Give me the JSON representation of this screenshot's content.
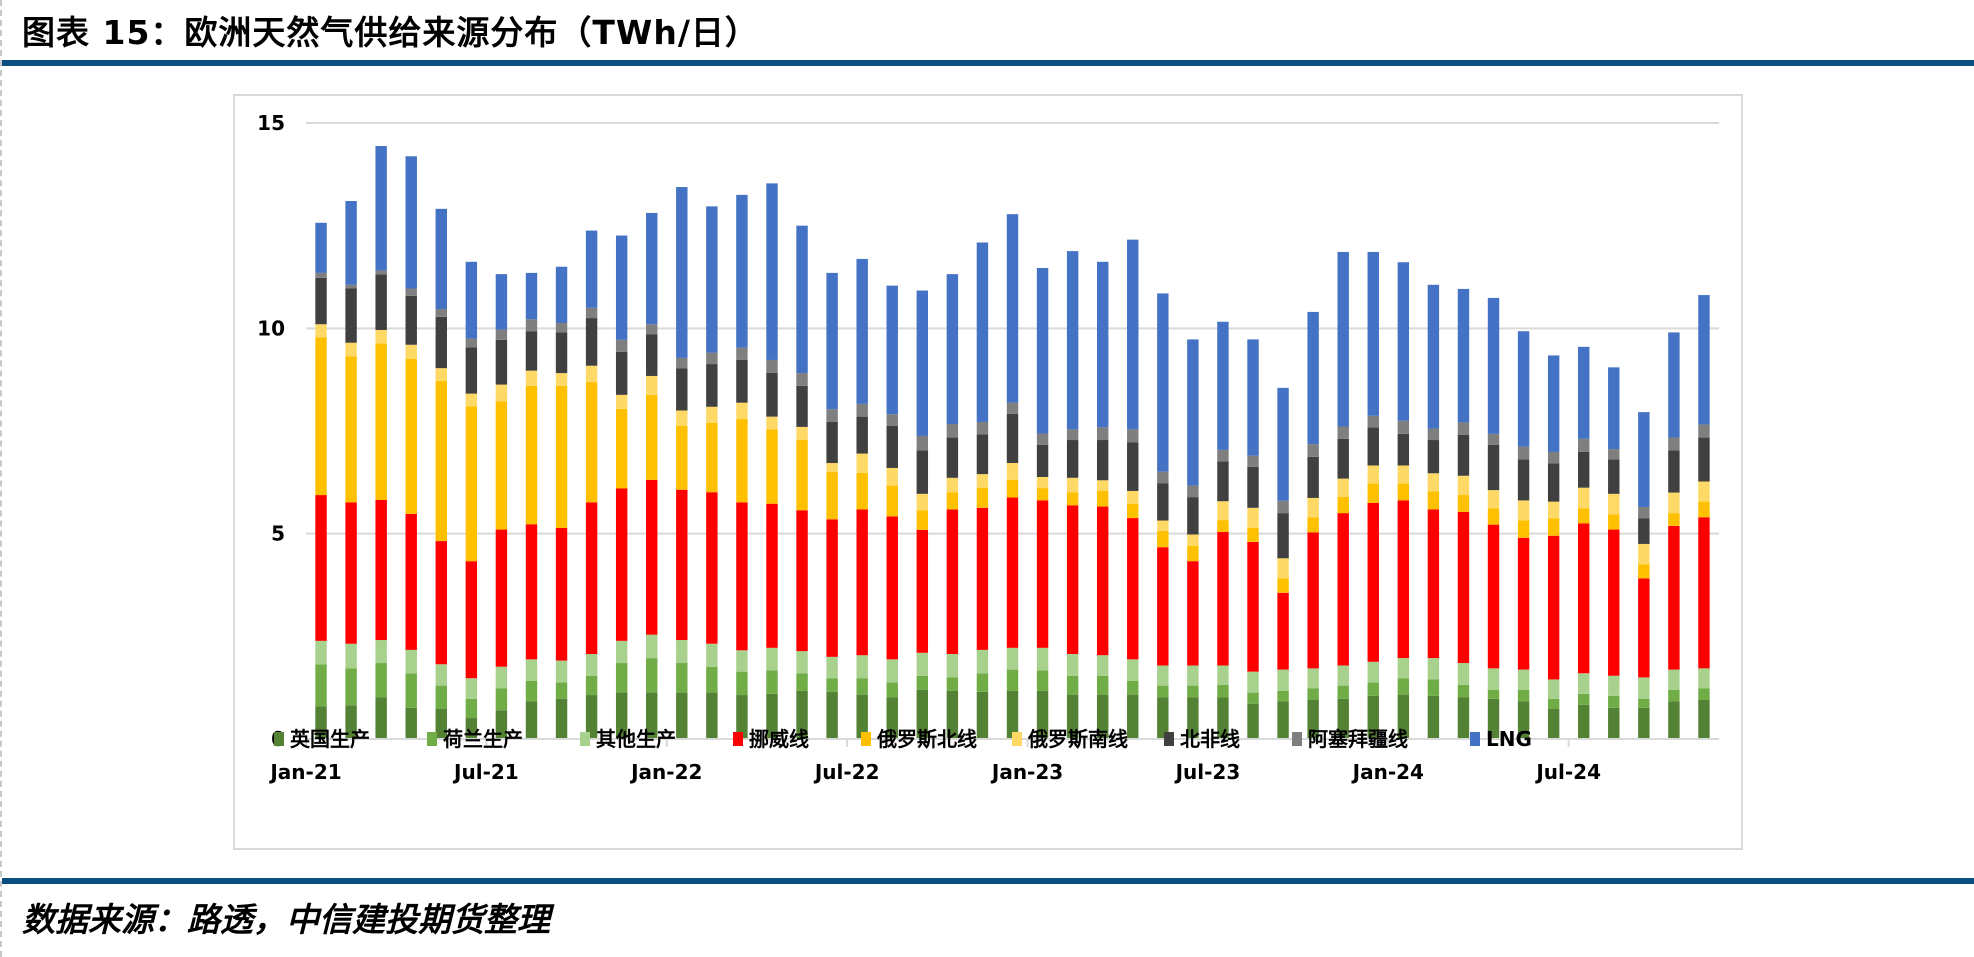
{
  "header": {
    "title": "图表 15：欧洲天然气供给来源分布（TWh/日）"
  },
  "footer": {
    "source": "数据来源：路透，中信建投期货整理"
  },
  "colors": {
    "rule": "#0b4f80",
    "grid": "#d9d9d9"
  },
  "chart_data": {
    "type": "bar",
    "stacked": true,
    "title": "欧洲天然气供给来源分布（TWh/日）",
    "xlabel": "",
    "ylabel": "",
    "ylim": [
      0,
      15
    ],
    "yticks": [
      0,
      5,
      10,
      15
    ],
    "grid": true,
    "legend_position": "bottom",
    "x_tick_labels": [
      "Jan-21",
      "Jul-21",
      "Jan-22",
      "Jul-22",
      "Jan-23",
      "Jul-23",
      "Jan-24",
      "Jul-24"
    ],
    "categories": [
      "Jan-21",
      "Feb-21",
      "Mar-21",
      "Apr-21",
      "May-21",
      "Jun-21",
      "Jul-21",
      "Aug-21",
      "Sep-21",
      "Oct-21",
      "Nov-21",
      "Dec-21",
      "Jan-22",
      "Feb-22",
      "Mar-22",
      "Apr-22",
      "May-22",
      "Jun-22",
      "Jul-22",
      "Aug-22",
      "Sep-22",
      "Oct-22",
      "Nov-22",
      "Dec-22",
      "Jan-23",
      "Feb-23",
      "Mar-23",
      "Apr-23",
      "May-23",
      "Jun-23",
      "Jul-23",
      "Aug-23",
      "Sep-23",
      "Oct-23",
      "Nov-23",
      "Dec-23",
      "Jan-24",
      "Feb-24",
      "Mar-24",
      "Apr-24",
      "May-24",
      "Jun-24",
      "Jul-24",
      "Aug-24",
      "Sep-24",
      "Oct-24",
      "Nov-24"
    ],
    "series": [
      {
        "name": "英国生产",
        "color": "#548235",
        "values": [
          0.79,
          0.82,
          1.01,
          0.76,
          0.73,
          0.51,
          0.7,
          0.92,
          0.98,
          1.07,
          1.13,
          1.13,
          1.13,
          1.13,
          1.07,
          1.1,
          1.17,
          1.15,
          1.08,
          1.01,
          1.2,
          1.17,
          1.15,
          1.17,
          1.17,
          1.08,
          1.08,
          1.08,
          1.01,
          1.01,
          1.01,
          0.86,
          0.92,
          0.95,
          0.98,
          1.05,
          1.08,
          1.05,
          1.01,
          0.98,
          0.92,
          0.73,
          0.83,
          0.76,
          0.76,
          0.92,
          0.95
        ]
      },
      {
        "name": "荷兰生产",
        "color": "#70ad47",
        "values": [
          1.03,
          0.9,
          0.84,
          0.84,
          0.57,
          0.47,
          0.53,
          0.5,
          0.4,
          0.47,
          0.72,
          0.84,
          0.72,
          0.63,
          0.57,
          0.57,
          0.43,
          0.33,
          0.4,
          0.37,
          0.34,
          0.33,
          0.45,
          0.52,
          0.5,
          0.46,
          0.46,
          0.34,
          0.29,
          0.29,
          0.31,
          0.27,
          0.25,
          0.28,
          0.32,
          0.33,
          0.4,
          0.4,
          0.31,
          0.22,
          0.28,
          0.25,
          0.27,
          0.29,
          0.22,
          0.28,
          0.28
        ]
      },
      {
        "name": "其他生产",
        "color": "#a9d18e",
        "values": [
          0.57,
          0.6,
          0.56,
          0.57,
          0.52,
          0.5,
          0.53,
          0.52,
          0.53,
          0.53,
          0.54,
          0.57,
          0.56,
          0.56,
          0.52,
          0.55,
          0.54,
          0.52,
          0.56,
          0.56,
          0.56,
          0.57,
          0.57,
          0.53,
          0.55,
          0.53,
          0.5,
          0.52,
          0.49,
          0.49,
          0.47,
          0.51,
          0.52,
          0.49,
          0.49,
          0.5,
          0.49,
          0.52,
          0.53,
          0.52,
          0.49,
          0.47,
          0.5,
          0.49,
          0.52,
          0.49,
          0.49
        ]
      },
      {
        "name": "挪威线",
        "color": "#ff0000",
        "values": [
          3.55,
          3.44,
          3.41,
          3.31,
          3.0,
          2.85,
          3.34,
          3.29,
          3.23,
          3.69,
          3.71,
          3.77,
          3.66,
          3.69,
          3.6,
          3.51,
          3.43,
          3.35,
          3.55,
          3.48,
          2.99,
          3.52,
          3.46,
          3.66,
          3.59,
          3.62,
          3.62,
          3.44,
          2.88,
          2.54,
          3.25,
          3.16,
          1.87,
          3.31,
          3.71,
          3.87,
          3.84,
          3.62,
          3.68,
          3.5,
          3.21,
          3.5,
          3.65,
          3.56,
          2.41,
          3.5,
          3.68
        ]
      },
      {
        "name": "俄罗斯北线",
        "color": "#ffc000",
        "values": [
          3.84,
          3.56,
          3.81,
          3.78,
          3.9,
          3.77,
          3.12,
          3.37,
          3.46,
          2.93,
          1.94,
          2.07,
          1.56,
          1.69,
          2.03,
          1.81,
          1.71,
          1.15,
          0.89,
          0.75,
          0.48,
          0.42,
          0.49,
          0.43,
          0.3,
          0.32,
          0.38,
          0.35,
          0.4,
          0.37,
          0.29,
          0.34,
          0.35,
          0.37,
          0.4,
          0.47,
          0.41,
          0.44,
          0.41,
          0.4,
          0.42,
          0.42,
          0.37,
          0.37,
          0.34,
          0.31,
          0.38
        ]
      },
      {
        "name": "俄罗斯南线",
        "color": "#ffd966",
        "values": [
          0.32,
          0.33,
          0.33,
          0.34,
          0.31,
          0.31,
          0.41,
          0.37,
          0.31,
          0.4,
          0.34,
          0.46,
          0.37,
          0.39,
          0.4,
          0.31,
          0.32,
          0.22,
          0.47,
          0.43,
          0.4,
          0.35,
          0.33,
          0.41,
          0.27,
          0.35,
          0.26,
          0.31,
          0.25,
          0.28,
          0.46,
          0.49,
          0.49,
          0.47,
          0.44,
          0.44,
          0.44,
          0.44,
          0.47,
          0.44,
          0.49,
          0.41,
          0.5,
          0.5,
          0.5,
          0.5,
          0.49
        ]
      },
      {
        "name": "北非线",
        "color": "#404040",
        "values": [
          1.13,
          1.32,
          1.35,
          1.19,
          1.25,
          1.13,
          1.09,
          0.96,
          0.99,
          1.16,
          1.05,
          1.01,
          1.03,
          1.04,
          1.04,
          1.07,
          1.0,
          1.0,
          0.9,
          1.03,
          1.06,
          0.98,
          0.97,
          1.2,
          0.78,
          0.92,
          0.98,
          1.18,
          0.91,
          0.91,
          0.97,
          1.0,
          1.1,
          1.0,
          0.97,
          0.93,
          0.77,
          0.81,
          1.0,
          1.1,
          1.0,
          0.93,
          0.87,
          0.84,
          0.62,
          1.03,
          1.07
        ]
      },
      {
        "name": "阿塞拜疆线",
        "color": "#7f7f7f",
        "values": [
          0.12,
          0.09,
          0.1,
          0.18,
          0.19,
          0.21,
          0.25,
          0.29,
          0.23,
          0.25,
          0.29,
          0.25,
          0.25,
          0.28,
          0.3,
          0.31,
          0.31,
          0.31,
          0.31,
          0.28,
          0.35,
          0.33,
          0.3,
          0.27,
          0.28,
          0.26,
          0.31,
          0.32,
          0.28,
          0.28,
          0.28,
          0.27,
          0.3,
          0.31,
          0.3,
          0.28,
          0.32,
          0.28,
          0.3,
          0.27,
          0.31,
          0.28,
          0.32,
          0.25,
          0.28,
          0.31,
          0.32
        ]
      },
      {
        "name": "LNG",
        "color": "#4472c4",
        "values": [
          1.22,
          2.04,
          3.03,
          3.22,
          2.44,
          1.87,
          1.35,
          1.13,
          1.37,
          1.88,
          2.54,
          2.71,
          4.16,
          3.56,
          3.72,
          4.3,
          3.59,
          3.32,
          3.53,
          3.13,
          3.54,
          3.65,
          4.37,
          4.59,
          4.03,
          4.34,
          4.03,
          4.62,
          4.34,
          3.56,
          3.12,
          2.83,
          2.75,
          3.22,
          4.25,
          3.99,
          3.86,
          3.5,
          3.25,
          3.31,
          2.81,
          2.35,
          2.24,
          1.99,
          2.31,
          2.56,
          3.15
        ]
      }
    ]
  }
}
